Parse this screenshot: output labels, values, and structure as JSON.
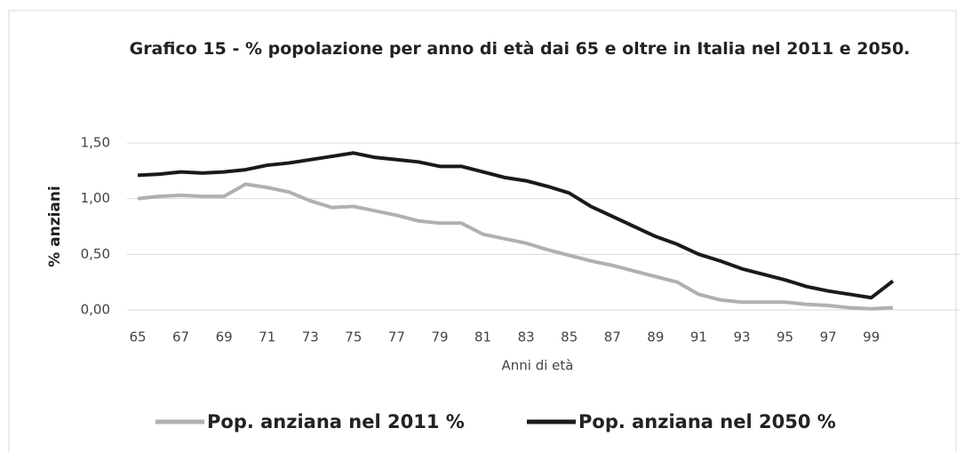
{
  "chart_data": {
    "type": "line",
    "title": "Grafico 15 - % popolazione per anno di età  dai 65 e oltre in Italia nel 2011 e  2050.",
    "xlabel": "Anni di età",
    "ylabel": "% anziani",
    "x": [
      65,
      66,
      67,
      68,
      69,
      70,
      71,
      72,
      73,
      74,
      75,
      76,
      77,
      78,
      79,
      80,
      81,
      82,
      83,
      84,
      85,
      86,
      87,
      88,
      89,
      90,
      91,
      92,
      93,
      94,
      95,
      96,
      97,
      98,
      99,
      100
    ],
    "xlim": [
      65,
      100
    ],
    "xticks": [
      65,
      67,
      69,
      71,
      73,
      75,
      77,
      79,
      81,
      83,
      85,
      87,
      89,
      91,
      93,
      95,
      97,
      99
    ],
    "ylim": [
      0,
      1.5
    ],
    "yticks": [
      {
        "value": 0,
        "label": "0,00"
      },
      {
        "value": 0.5,
        "label": "0,50"
      },
      {
        "value": 1,
        "label": "1,00"
      },
      {
        "value": 1.5,
        "label": "1,50"
      }
    ],
    "grid": true,
    "legend": "bottom",
    "series": [
      {
        "name": "Pop. anziana nel 2011 %",
        "color": "#b0b0b0",
        "values": [
          1.0,
          1.02,
          1.03,
          1.02,
          1.02,
          1.13,
          1.1,
          1.06,
          0.98,
          0.92,
          0.93,
          0.89,
          0.85,
          0.8,
          0.78,
          0.78,
          0.68,
          0.64,
          0.6,
          0.54,
          0.49,
          0.44,
          0.4,
          0.35,
          0.3,
          0.25,
          0.14,
          0.09,
          0.07,
          0.07,
          0.07,
          0.05,
          0.04,
          0.02,
          0.01,
          0.02
        ]
      },
      {
        "name": "Pop. anziana nel 2050 %",
        "color": "#1a1a1a",
        "values": [
          1.21,
          1.22,
          1.24,
          1.23,
          1.24,
          1.26,
          1.3,
          1.32,
          1.35,
          1.38,
          1.41,
          1.37,
          1.35,
          1.33,
          1.29,
          1.29,
          1.24,
          1.19,
          1.16,
          1.11,
          1.05,
          0.93,
          0.84,
          0.75,
          0.66,
          0.59,
          0.5,
          0.44,
          0.37,
          0.32,
          0.27,
          0.21,
          0.17,
          0.14,
          0.11,
          0.26
        ]
      }
    ]
  }
}
